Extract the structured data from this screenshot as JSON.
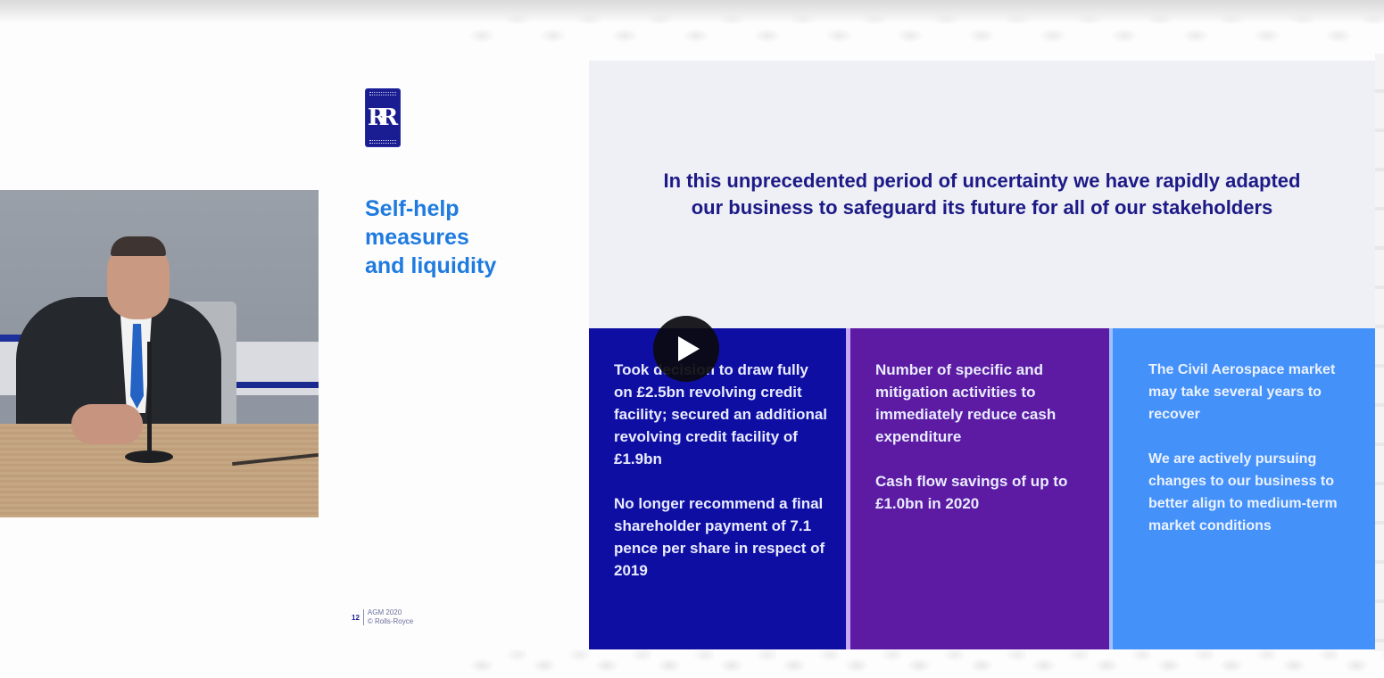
{
  "slide": {
    "logo": {
      "monogram": "RR",
      "top_word": "ROLLS",
      "bottom_word": "ROYCE"
    },
    "section_title": "Self-help\nmeasures\nand liquidity",
    "headline": "In this unprecedented period of uncertainty we have rapidly adapted our business to safeguard its future for all of our stakeholders",
    "columns": [
      {
        "color": "#0f0ea3",
        "paragraphs": [
          "Took decision to draw fully on £2.5bn revolving credit facility; secured an additional revolving credit facility of £1.9bn",
          "No longer recommend a final shareholder payment of 7.1 pence per share in respect of 2019"
        ]
      },
      {
        "color": "#5c1ba2",
        "paragraphs": [
          "Number of specific and mitigation activities to immediately reduce cash expenditure",
          "Cash flow savings of up to £1.0bn in 2020"
        ]
      },
      {
        "color": "#4591fa",
        "paragraphs": [
          "The Civil Aerospace market may take several years to recover",
          "We are actively pursuing changes to our business to better align to medium-term market conditions"
        ]
      }
    ],
    "footer": {
      "page_number": "12",
      "event": "AGM 2020",
      "copyright": "© Rolls-Royce"
    }
  },
  "video": {
    "play_button_icon": "play-icon"
  },
  "colors": {
    "title_blue": "#1f7be0",
    "headline_navy": "#1c1a86",
    "header_panel_bg": "#efeff6"
  }
}
